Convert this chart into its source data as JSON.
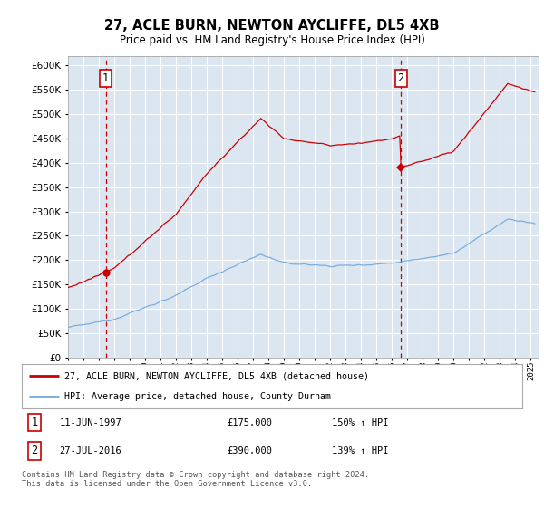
{
  "title": "27, ACLE BURN, NEWTON AYCLIFFE, DL5 4XB",
  "subtitle": "Price paid vs. HM Land Registry's House Price Index (HPI)",
  "ylim": [
    0,
    620000
  ],
  "yticks": [
    0,
    50000,
    100000,
    150000,
    200000,
    250000,
    300000,
    350000,
    400000,
    450000,
    500000,
    550000,
    600000
  ],
  "xlim_start": 1995.0,
  "xlim_end": 2025.5,
  "fig_bg_color": "#ffffff",
  "plot_bg_color": "#dce6f1",
  "grid_color": "#ffffff",
  "sale1_date": 1997.44,
  "sale1_price": 175000,
  "sale2_date": 2016.57,
  "sale2_price": 390000,
  "sale1_label": "1",
  "sale2_label": "2",
  "legend_line1": "27, ACLE BURN, NEWTON AYCLIFFE, DL5 4XB (detached house)",
  "legend_line2": "HPI: Average price, detached house, County Durham",
  "footer": "Contains HM Land Registry data © Crown copyright and database right 2024.\nThis data is licensed under the Open Government Licence v3.0.",
  "hpi_color": "#6fa8dc",
  "price_color": "#cc0000",
  "dashed_line_color": "#cc0000"
}
